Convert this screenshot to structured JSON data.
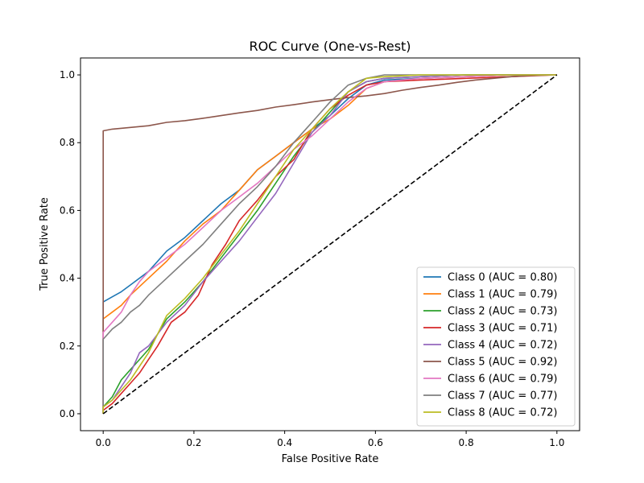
{
  "chart_data": {
    "type": "line",
    "title": "ROC Curve (One-vs-Rest)",
    "xlabel": "False Positive Rate",
    "ylabel": "True Positive Rate",
    "xlim": [
      -0.05,
      1.05
    ],
    "ylim": [
      -0.05,
      1.05
    ],
    "xticks": [
      "0.0",
      "0.2",
      "0.4",
      "0.6",
      "0.8",
      "1.0"
    ],
    "yticks": [
      "0.0",
      "0.2",
      "0.4",
      "0.6",
      "0.8",
      "1.0"
    ],
    "grid": false,
    "legend_position": "lower right",
    "series": [
      {
        "name": "Class 0 (AUC = 0.80)",
        "color": "#1f77b4",
        "x": [
          0,
          0,
          0.02,
          0.04,
          0.06,
          0.1,
          0.14,
          0.18,
          0.22,
          0.26,
          0.3,
          0.34,
          0.38,
          0.42,
          0.46,
          0.5,
          0.54,
          0.58,
          0.62,
          0.7,
          0.8,
          0.9,
          1.0
        ],
        "y": [
          0,
          0.33,
          0.345,
          0.36,
          0.38,
          0.42,
          0.48,
          0.52,
          0.57,
          0.62,
          0.66,
          0.72,
          0.76,
          0.8,
          0.84,
          0.88,
          0.93,
          0.97,
          0.985,
          0.99,
          0.995,
          1.0,
          1.0
        ]
      },
      {
        "name": "Class 1 (AUC = 0.79)",
        "color": "#ff7f0e",
        "x": [
          0,
          0,
          0.02,
          0.04,
          0.06,
          0.1,
          0.14,
          0.18,
          0.22,
          0.26,
          0.3,
          0.34,
          0.38,
          0.42,
          0.46,
          0.5,
          0.54,
          0.58,
          0.62,
          0.7,
          0.8,
          0.9,
          1.0
        ],
        "y": [
          0,
          0.28,
          0.3,
          0.32,
          0.35,
          0.4,
          0.45,
          0.51,
          0.56,
          0.6,
          0.66,
          0.72,
          0.76,
          0.8,
          0.84,
          0.87,
          0.91,
          0.96,
          0.98,
          0.99,
          0.995,
          1.0,
          1.0
        ]
      },
      {
        "name": "Class 2 (AUC = 0.73)",
        "color": "#2ca02c",
        "x": [
          0,
          0,
          0.02,
          0.04,
          0.06,
          0.08,
          0.1,
          0.14,
          0.18,
          0.22,
          0.26,
          0.3,
          0.34,
          0.38,
          0.42,
          0.46,
          0.5,
          0.54,
          0.58,
          0.62,
          0.7,
          0.8,
          0.9,
          1.0
        ],
        "y": [
          0,
          0.02,
          0.05,
          0.1,
          0.13,
          0.16,
          0.19,
          0.28,
          0.33,
          0.39,
          0.46,
          0.53,
          0.6,
          0.68,
          0.76,
          0.83,
          0.89,
          0.95,
          0.98,
          0.99,
          0.995,
          1.0,
          1.0,
          1.0
        ]
      },
      {
        "name": "Class 3 (AUC = 0.71)",
        "color": "#d62728",
        "x": [
          0,
          0,
          0.02,
          0.04,
          0.06,
          0.08,
          0.1,
          0.12,
          0.15,
          0.18,
          0.21,
          0.24,
          0.27,
          0.3,
          0.34,
          0.38,
          0.42,
          0.46,
          0.5,
          0.54,
          0.58,
          0.62,
          0.7,
          0.8,
          0.9,
          1.0
        ],
        "y": [
          0,
          0.01,
          0.03,
          0.06,
          0.09,
          0.12,
          0.16,
          0.2,
          0.27,
          0.3,
          0.35,
          0.44,
          0.5,
          0.57,
          0.63,
          0.7,
          0.75,
          0.84,
          0.9,
          0.94,
          0.97,
          0.98,
          0.985,
          0.99,
          0.995,
          1.0
        ]
      },
      {
        "name": "Class 4 (AUC = 0.72)",
        "color": "#9467bd",
        "x": [
          0,
          0,
          0.02,
          0.04,
          0.06,
          0.08,
          0.1,
          0.14,
          0.18,
          0.22,
          0.26,
          0.3,
          0.34,
          0.38,
          0.42,
          0.46,
          0.5,
          0.54,
          0.58,
          0.62,
          0.7,
          0.8,
          0.9,
          1.0
        ],
        "y": [
          0,
          0.02,
          0.04,
          0.08,
          0.12,
          0.18,
          0.2,
          0.27,
          0.32,
          0.39,
          0.45,
          0.51,
          0.58,
          0.65,
          0.74,
          0.83,
          0.88,
          0.95,
          0.98,
          0.99,
          0.995,
          1.0,
          1.0,
          1.0
        ]
      },
      {
        "name": "Class 5 (AUC = 0.92)",
        "color": "#8c564b",
        "x": [
          0,
          0,
          0.02,
          0.06,
          0.1,
          0.14,
          0.18,
          0.22,
          0.26,
          0.3,
          0.34,
          0.38,
          0.42,
          0.46,
          0.5,
          0.54,
          0.58,
          0.62,
          0.66,
          0.7,
          0.74,
          0.78,
          0.82,
          0.86,
          0.9,
          0.94,
          1.0
        ],
        "y": [
          0,
          0.835,
          0.84,
          0.845,
          0.85,
          0.86,
          0.865,
          0.872,
          0.88,
          0.888,
          0.895,
          0.905,
          0.912,
          0.92,
          0.927,
          0.933,
          0.938,
          0.945,
          0.955,
          0.963,
          0.97,
          0.978,
          0.985,
          0.99,
          0.995,
          0.998,
          1.0
        ]
      },
      {
        "name": "Class 6 (AUC = 0.79)",
        "color": "#e377c2",
        "x": [
          0,
          0,
          0.02,
          0.04,
          0.06,
          0.08,
          0.1,
          0.14,
          0.18,
          0.22,
          0.26,
          0.3,
          0.34,
          0.38,
          0.42,
          0.46,
          0.5,
          0.54,
          0.58,
          0.62,
          0.7,
          0.8,
          0.9,
          1.0
        ],
        "y": [
          0,
          0.24,
          0.27,
          0.3,
          0.35,
          0.39,
          0.42,
          0.46,
          0.5,
          0.55,
          0.6,
          0.64,
          0.68,
          0.73,
          0.78,
          0.82,
          0.87,
          0.92,
          0.96,
          0.98,
          0.99,
          0.995,
          1.0,
          1.0
        ]
      },
      {
        "name": "Class 7 (AUC = 0.77)",
        "color": "#7f7f7f",
        "x": [
          0,
          0,
          0.02,
          0.04,
          0.06,
          0.08,
          0.1,
          0.14,
          0.18,
          0.22,
          0.26,
          0.3,
          0.34,
          0.38,
          0.42,
          0.46,
          0.5,
          0.54,
          0.58,
          0.62,
          0.7,
          0.8,
          0.9,
          1.0
        ],
        "y": [
          0,
          0.22,
          0.25,
          0.27,
          0.3,
          0.32,
          0.35,
          0.4,
          0.45,
          0.5,
          0.56,
          0.62,
          0.67,
          0.73,
          0.8,
          0.86,
          0.92,
          0.97,
          0.99,
          1.0,
          1.0,
          1.0,
          1.0,
          1.0
        ]
      },
      {
        "name": "Class 8 (AUC = 0.72)",
        "color": "#bcbd22",
        "x": [
          0,
          0,
          0.02,
          0.04,
          0.06,
          0.08,
          0.1,
          0.14,
          0.18,
          0.22,
          0.26,
          0.3,
          0.34,
          0.38,
          0.42,
          0.46,
          0.5,
          0.54,
          0.58,
          0.62,
          0.7,
          0.8,
          0.9,
          1.0
        ],
        "y": [
          0,
          0.02,
          0.04,
          0.07,
          0.1,
          0.14,
          0.18,
          0.29,
          0.34,
          0.4,
          0.47,
          0.54,
          0.62,
          0.7,
          0.78,
          0.84,
          0.9,
          0.95,
          0.99,
          0.995,
          1.0,
          1.0,
          1.0,
          1.0
        ]
      }
    ],
    "reference_line": {
      "x": [
        0,
        1
      ],
      "y": [
        0,
        1
      ],
      "color": "#000000",
      "style": "dashed"
    }
  }
}
